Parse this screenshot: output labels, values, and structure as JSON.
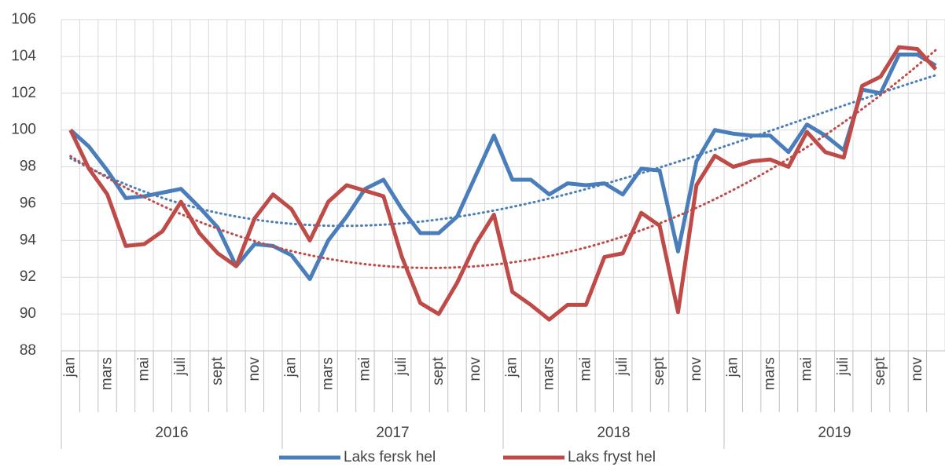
{
  "chart_data": {
    "type": "line",
    "categories": [
      "jan",
      null,
      "mars",
      null,
      "mai",
      null,
      "juli",
      null,
      "sept",
      null,
      "nov",
      null,
      "jan",
      null,
      "mars",
      null,
      "mai",
      null,
      "juli",
      null,
      "sept",
      null,
      "nov",
      null,
      "jan",
      null,
      "mars",
      null,
      "mai",
      null,
      "juli",
      null,
      "sept",
      null,
      "nov",
      null,
      "jan",
      null,
      "mars",
      null,
      "mai",
      null,
      "juli",
      null,
      "sept",
      null,
      "nov",
      null
    ],
    "years": [
      "2016",
      "2017",
      "2018",
      "2019"
    ],
    "series": [
      {
        "name": "Laks fersk hel",
        "color": "#4a7ebb",
        "trendline": {
          "type": "polynomial",
          "order": 3
        },
        "values": [
          100.0,
          99.1,
          97.8,
          96.3,
          96.4,
          96.6,
          96.8,
          95.8,
          94.7,
          92.6,
          93.8,
          93.7,
          93.2,
          91.9,
          94.0,
          95.3,
          96.8,
          97.3,
          95.7,
          94.4,
          94.4,
          95.3,
          97.5,
          99.7,
          97.3,
          97.3,
          96.5,
          97.1,
          97.0,
          97.1,
          96.5,
          97.9,
          97.8,
          93.4,
          98.3,
          100.0,
          99.8,
          99.7,
          99.7,
          98.8,
          100.3,
          99.7,
          98.9,
          102.2,
          102.0,
          104.1,
          104.1,
          103.5
        ]
      },
      {
        "name": "Laks fryst hel",
        "color": "#be4b48",
        "trendline": {
          "type": "polynomial",
          "order": 2
        },
        "values": [
          100.0,
          97.9,
          96.5,
          93.7,
          93.8,
          94.5,
          96.1,
          94.4,
          93.3,
          92.6,
          95.2,
          96.5,
          95.7,
          94.0,
          96.1,
          97.0,
          96.7,
          96.4,
          93.1,
          90.6,
          90.0,
          91.7,
          93.8,
          95.4,
          91.2,
          90.5,
          89.7,
          90.5,
          90.5,
          93.1,
          93.3,
          95.5,
          94.8,
          90.1,
          97.0,
          98.6,
          98.0,
          98.3,
          98.4,
          98.0,
          99.9,
          98.8,
          98.5,
          102.4,
          102.9,
          104.5,
          104.4,
          103.3
        ]
      }
    ],
    "ylim": [
      88,
      106
    ],
    "yticks": [
      88,
      90,
      92,
      94,
      96,
      98,
      100,
      102,
      104,
      106
    ],
    "grid": true,
    "legend": "bottom"
  }
}
